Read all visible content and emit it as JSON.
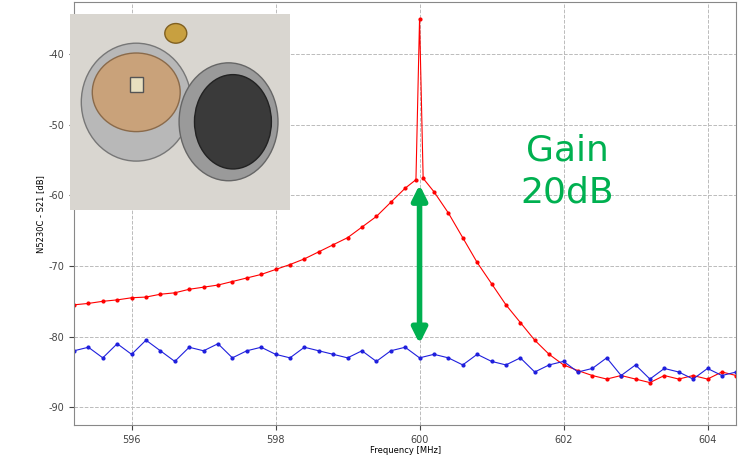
{
  "chart_data": {
    "type": "line",
    "x_label": "Frequency [MHz]",
    "y_label": "N5230C - S21 [dB]",
    "xlim": [
      595.2,
      604.4
    ],
    "ylim": [
      -92.5,
      -32.7
    ],
    "xticks": [
      596,
      598,
      600,
      602,
      604
    ],
    "yticks": [
      -90,
      -80,
      -70,
      -60,
      -50,
      -40
    ],
    "grid": true,
    "series": [
      {
        "color": "#ff0000",
        "marker": "o",
        "line_style": "solid",
        "x": [
          595.2,
          595.4,
          595.6,
          595.8,
          596.0,
          596.2,
          596.4,
          596.6,
          596.8,
          597.0,
          597.2,
          597.4,
          597.6,
          597.8,
          598.0,
          598.2,
          598.4,
          598.6,
          598.8,
          599.0,
          599.2,
          599.4,
          599.6,
          599.8,
          599.95,
          600.0,
          600.05,
          600.2,
          600.4,
          600.6,
          600.8,
          601.0,
          601.2,
          601.4,
          601.6,
          601.8,
          602.0,
          602.2,
          602.4,
          602.6,
          602.8,
          603.0,
          603.2,
          603.4,
          603.6,
          603.8,
          604.0,
          604.2,
          604.4
        ],
        "values": [
          -75.5,
          -75.3,
          -75,
          -74.8,
          -74.5,
          -74.4,
          -74,
          -73.8,
          -73.3,
          -73,
          -72.7,
          -72.2,
          -71.7,
          -71.2,
          -70.5,
          -69.8,
          -69,
          -68,
          -67,
          -66,
          -64.5,
          -63,
          -61,
          -59,
          -57.8,
          -35,
          -57.6,
          -59.5,
          -62.5,
          -66,
          -69.5,
          -72.5,
          -75.5,
          -78,
          -80.5,
          -82.5,
          -84,
          -84.8,
          -85.5,
          -86,
          -85.5,
          -86,
          -86.5,
          -85.5,
          -86,
          -85.5,
          -86,
          -85,
          -85.5
        ]
      },
      {
        "color": "#1f1fdd",
        "marker": "o",
        "line_style": "solid",
        "x": [
          595.2,
          595.4,
          595.6,
          595.8,
          596.0,
          596.2,
          596.4,
          596.6,
          596.8,
          597.0,
          597.2,
          597.4,
          597.6,
          597.8,
          598.0,
          598.2,
          598.4,
          598.6,
          598.8,
          599.0,
          599.2,
          599.4,
          599.6,
          599.8,
          600.0,
          600.2,
          600.4,
          600.6,
          600.8,
          601.0,
          601.2,
          601.4,
          601.6,
          601.8,
          602.0,
          602.2,
          602.4,
          602.6,
          602.8,
          603.0,
          603.2,
          603.4,
          603.6,
          603.8,
          604.0,
          604.2,
          604.4
        ],
        "values": [
          -82,
          -81.5,
          -83,
          -81,
          -82.5,
          -80.5,
          -82,
          -83.5,
          -81.5,
          -82,
          -81,
          -83,
          -82,
          -81.5,
          -82.5,
          -83,
          -81.5,
          -82,
          -82.5,
          -83,
          -82,
          -83.5,
          -82,
          -81.5,
          -83,
          -82.5,
          -83,
          -84,
          -82.5,
          -83.5,
          -84,
          -83,
          -85,
          -84,
          -83.5,
          -85,
          -84.5,
          -83,
          -85.5,
          -84,
          -86,
          -84.5,
          -85,
          -86,
          -84.5,
          -85.5,
          -85
        ]
      }
    ],
    "annotation": {
      "text": "Gain\n20dB",
      "color": "#00b050",
      "x": 600,
      "y_from": -58.5,
      "y_to": -81
    }
  }
}
